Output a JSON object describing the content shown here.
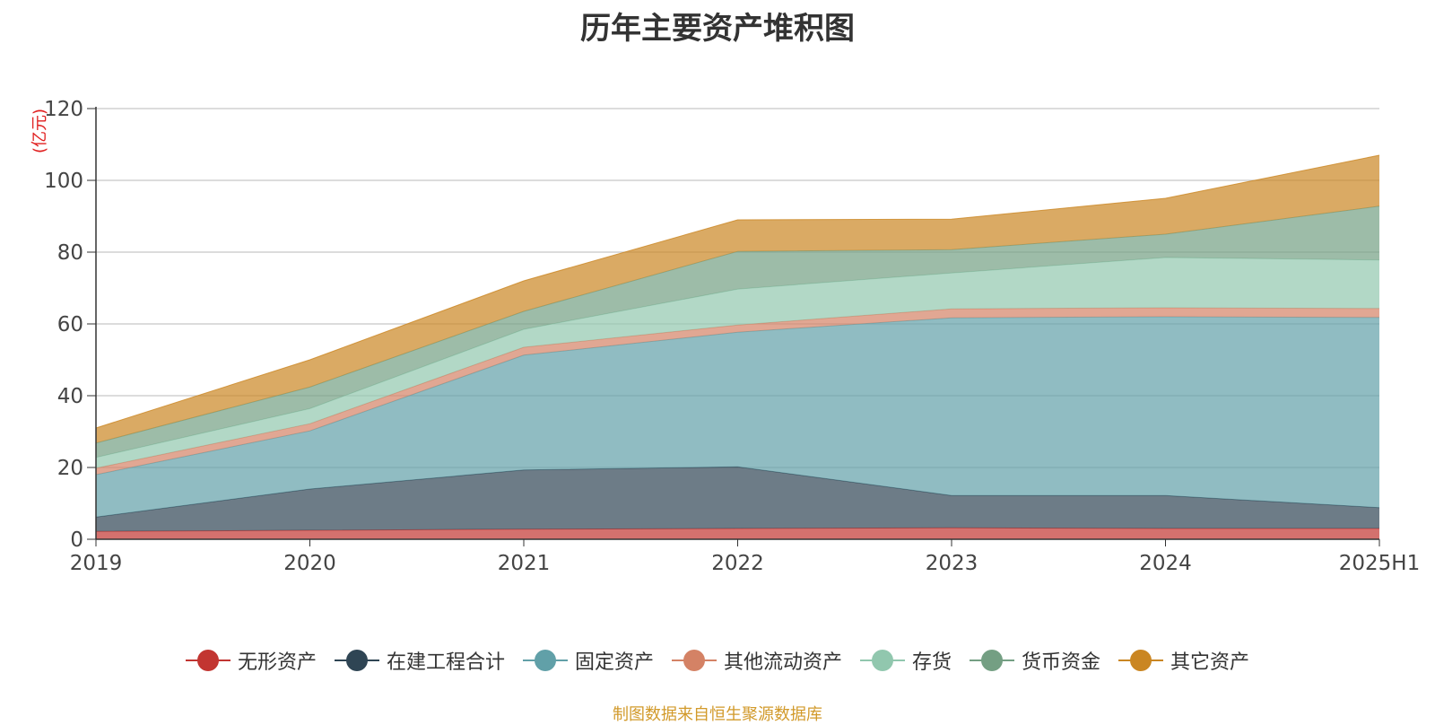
{
  "title": "历年主要资产堆积图",
  "source_note": "制图数据来自恒生聚源数据库",
  "chart_data": {
    "type": "area",
    "stacked": true,
    "title": "历年主要资产堆积图",
    "ylabel": "(亿元)",
    "xlabel": "",
    "ylim": [
      0,
      120
    ],
    "yticks": [
      0,
      20,
      40,
      60,
      80,
      100,
      120
    ],
    "grid": true,
    "legend_position": "bottom",
    "categories": [
      "2019",
      "2020",
      "2021",
      "2022",
      "2023",
      "2024",
      "2025H1"
    ],
    "series": [
      {
        "name": "无形资产",
        "color": "#c23531",
        "values": [
          2.2,
          2.5,
          2.8,
          3.0,
          3.2,
          3.0,
          3.0
        ]
      },
      {
        "name": "在建工程合计",
        "color": "#2f4554",
        "values": [
          4.0,
          11.5,
          16.5,
          17.2,
          9.0,
          9.2,
          5.8
        ]
      },
      {
        "name": "固定资产",
        "color": "#61a0a8",
        "values": [
          11.8,
          16.2,
          32.0,
          37.5,
          49.5,
          49.8,
          53.0
        ]
      },
      {
        "name": "其他流动资产",
        "color": "#d48265",
        "values": [
          1.8,
          2.0,
          2.2,
          2.0,
          2.5,
          2.5,
          2.5
        ]
      },
      {
        "name": "存货",
        "color": "#91c7ae",
        "values": [
          3.0,
          4.2,
          5.0,
          10.0,
          10.0,
          14.0,
          13.5
        ]
      },
      {
        "name": "货币资金",
        "color": "#749f83",
        "values": [
          4.0,
          6.0,
          5.0,
          10.5,
          6.5,
          6.5,
          15.0
        ]
      },
      {
        "name": "其它资产",
        "color": "#ca8622",
        "values": [
          4.2,
          7.6,
          8.5,
          8.8,
          8.5,
          10.0,
          14.2
        ]
      }
    ]
  }
}
